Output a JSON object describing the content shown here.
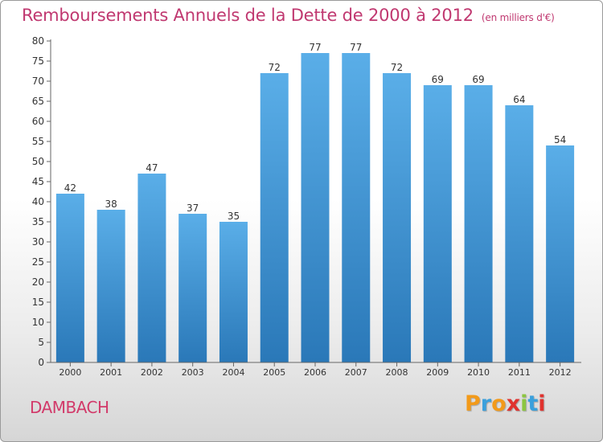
{
  "header": {
    "title": "Remboursements Annuels de la Dette de 2000 à 2012",
    "subtitle": "(en milliers d'€)"
  },
  "footer": {
    "city": "DAMBACH",
    "logo_text": "Proxiti"
  },
  "colors": {
    "title": "#c03870",
    "bar_top": "#5aaee8",
    "bar_bottom": "#2a78b8",
    "axis": "#666666"
  },
  "chart_data": {
    "type": "bar",
    "title": "Remboursements Annuels de la Dette de 2000 à 2012",
    "subtitle": "(en milliers d'€)",
    "categories": [
      "2000",
      "2001",
      "2002",
      "2003",
      "2004",
      "2005",
      "2006",
      "2007",
      "2008",
      "2009",
      "2010",
      "2011",
      "2012"
    ],
    "values": [
      42,
      38,
      47,
      37,
      35,
      72,
      77,
      77,
      72,
      69,
      69,
      64,
      54
    ],
    "ylim": [
      0,
      80
    ],
    "yticks": [
      0,
      5,
      10,
      15,
      20,
      25,
      30,
      35,
      40,
      45,
      50,
      55,
      60,
      65,
      70,
      75,
      80
    ],
    "grid": false,
    "legend": "none"
  }
}
